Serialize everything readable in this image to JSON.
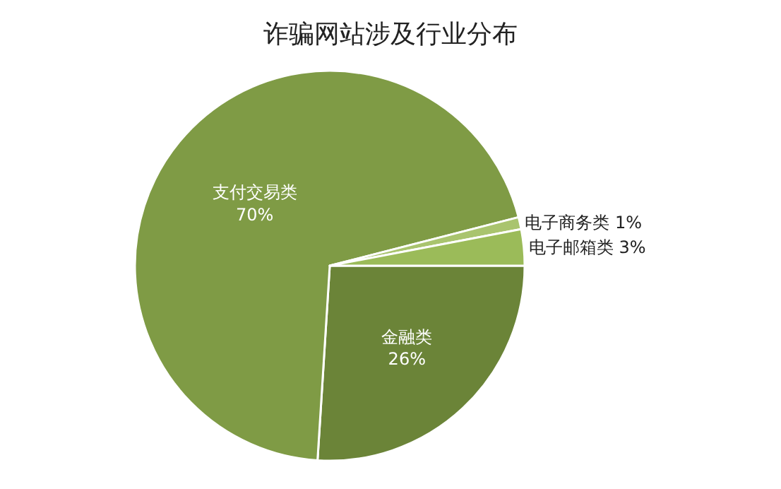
{
  "chart_data": {
    "type": "pie",
    "title": "诈骗网站涉及行业分布",
    "categories": [
      "金融类",
      "支付交易类",
      "电子商务类",
      "电子邮箱类"
    ],
    "values": [
      26,
      70,
      1,
      3
    ],
    "value_labels": [
      "26%",
      "70%",
      "1%",
      "3%"
    ],
    "colors": [
      "#6b8438",
      "#7f9b45",
      "#a9c46e",
      "#9bbb59"
    ],
    "legend": false
  }
}
